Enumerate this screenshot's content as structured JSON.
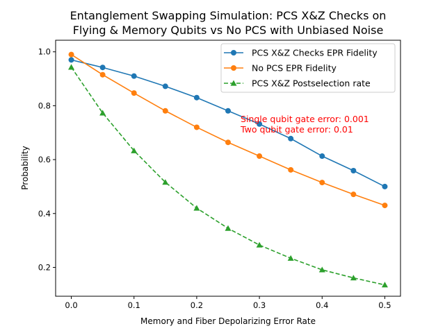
{
  "chart_data": {
    "type": "line",
    "title": "Entanglement Swapping Simulation: PCS X&Z Checks on\nFlying & Memory Qubits vs No PCS with Unbiased Noise",
    "xlabel": "Memory and Fiber Depolarizing Error Rate",
    "ylabel": "Probability",
    "xlim": [
      -0.025,
      0.525
    ],
    "ylim": [
      0.093,
      1.043
    ],
    "x": [
      0.0,
      0.05,
      0.1,
      0.15,
      0.2,
      0.25,
      0.3,
      0.35,
      0.4,
      0.45,
      0.5
    ],
    "xticks": [
      "0.0",
      "0.1",
      "0.2",
      "0.3",
      "0.4",
      "0.5"
    ],
    "yticks": [
      "0.2",
      "0.4",
      "0.6",
      "0.8",
      "1.0"
    ],
    "grid": false,
    "legend_position": "top-right",
    "series": [
      {
        "name": "PCS X&Z Checks EPR Fidelity",
        "color": "#1f77b4",
        "marker": "circle",
        "linestyle": "solid",
        "values": [
          0.97,
          0.942,
          0.91,
          0.872,
          0.83,
          0.781,
          0.732,
          0.678,
          0.613,
          0.559,
          0.5
        ]
      },
      {
        "name": "No PCS EPR Fidelity",
        "color": "#ff7f0e",
        "marker": "circle",
        "linestyle": "solid",
        "values": [
          0.99,
          0.915,
          0.847,
          0.781,
          0.72,
          0.664,
          0.613,
          0.562,
          0.515,
          0.471,
          0.43
        ]
      },
      {
        "name": "PCS X&Z Postselection rate",
        "color": "#2ca02c",
        "marker": "triangle",
        "linestyle": "dashed",
        "values": [
          0.943,
          0.773,
          0.633,
          0.516,
          0.42,
          0.345,
          0.283,
          0.234,
          0.191,
          0.161,
          0.135
        ]
      }
    ],
    "annotations": [
      {
        "lines": [
          "Single qubit gate error: 0.001",
          "Two qubit gate error: 0.01"
        ],
        "x": 0.27,
        "y": 0.7,
        "color": "#ff0000"
      }
    ]
  }
}
